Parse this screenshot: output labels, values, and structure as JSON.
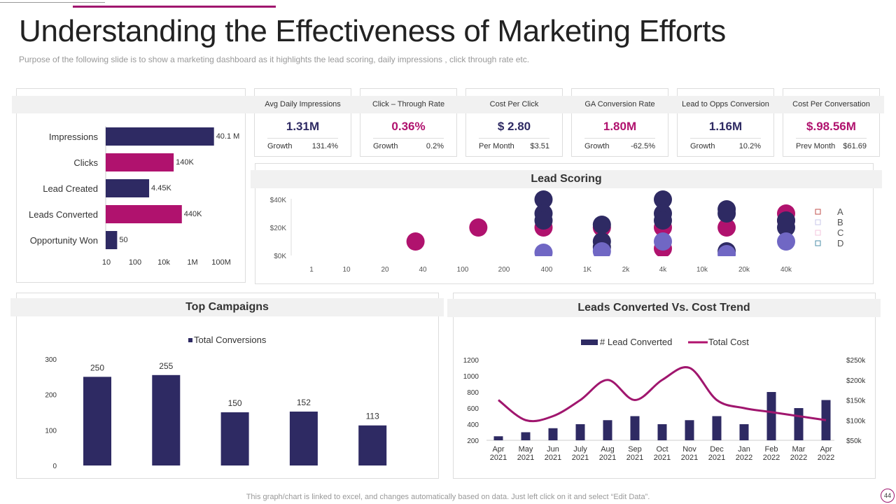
{
  "title": "Understanding the Effectiveness of Marketing Efforts",
  "subtitle": "Purpose of the following slide is to show a marketing dashboard as it highlights the lead scoring, daily impressions , click through rate etc.",
  "colors": {
    "navy": "#2e2a63",
    "magenta": "#b0126e",
    "lavender": "#7067c4",
    "accent": "#a0166e"
  },
  "funnel": {
    "categories": [
      "Impressions",
      "Clicks",
      "Lead Created",
      "Leads Converted",
      "Opportunity Won"
    ],
    "values": [
      40100000,
      140000,
      4450,
      440000,
      50
    ],
    "labels": [
      "40.1 M",
      "140K",
      "4.45K",
      "440K",
      "50"
    ],
    "colors": [
      "navy",
      "magenta",
      "navy",
      "magenta",
      "navy"
    ],
    "ticks": [
      "10",
      "100",
      "10k",
      "1M",
      "100M"
    ],
    "scale": "log"
  },
  "kpis": [
    {
      "title": "Avg Daily Impressions",
      "value": "1.31M",
      "color": "navy",
      "foot_label": "Growth",
      "foot_value": "131.4%"
    },
    {
      "title": "Click – Through Rate",
      "value": "0.36%",
      "color": "magenta",
      "foot_label": "Growth",
      "foot_value": "0.2%"
    },
    {
      "title": "Cost Per Click",
      "value": "$ 2.80",
      "color": "navy",
      "foot_label": "Per Month",
      "foot_value": "$3.51"
    },
    {
      "title": "GA Conversion Rate",
      "value": "1.80M",
      "color": "magenta",
      "foot_label": "Growth",
      "foot_value": "-62.5%"
    },
    {
      "title": "Lead to Opps Conversion",
      "value": "1.16M",
      "color": "navy",
      "foot_label": "Growth",
      "foot_value": "10.2%"
    },
    {
      "title": "Cost Per Conversation",
      "value": "$.98.56M",
      "color": "magenta",
      "foot_label": "Prev Month",
      "foot_value": "$61.69"
    }
  ],
  "chart_data": [
    {
      "type": "scatter",
      "title": "Lead Scoring",
      "x_ticks": [
        "1",
        "10",
        "20",
        "40",
        "100",
        "200",
        "400",
        "1K",
        "2k",
        "4k",
        "10k",
        "20k",
        "40k"
      ],
      "y_ticks": [
        "$0K",
        "$20K",
        "$40K"
      ],
      "ylim": [
        0,
        40000
      ],
      "legend": [
        {
          "name": "A",
          "color": "#c0504d"
        },
        {
          "name": "B",
          "color": "#c9c7ea"
        },
        {
          "name": "C",
          "color": "#f3c6dc"
        },
        {
          "name": "D",
          "color": "#4f8fa8"
        }
      ],
      "legend_position": "right",
      "series": [
        {
          "color": "#b0126e",
          "points": [
            [
              35,
              10000
            ],
            [
              130,
              20000
            ],
            [
              380,
              20000
            ],
            [
              1300,
              20000
            ],
            [
              4000,
              20000
            ],
            [
              4000,
              5000
            ],
            [
              15000,
              20000
            ],
            [
              40000,
              30000
            ],
            [
              40000,
              25000
            ]
          ]
        },
        {
          "color": "#2e2a63",
          "points": [
            [
              380,
              40000
            ],
            [
              380,
              30000
            ],
            [
              380,
              25000
            ],
            [
              1300,
              22000
            ],
            [
              1300,
              10000
            ],
            [
              1300,
              6000
            ],
            [
              4000,
              40000
            ],
            [
              4000,
              30000
            ],
            [
              4000,
              25000
            ],
            [
              15000,
              33000
            ],
            [
              15000,
              30000
            ],
            [
              15000,
              3000
            ],
            [
              40000,
              25000
            ],
            [
              40000,
              20000
            ]
          ]
        },
        {
          "color": "#7067c4",
          "points": [
            [
              380,
              2000
            ],
            [
              1300,
              3000
            ],
            [
              4000,
              10000
            ],
            [
              15000,
              1000
            ],
            [
              40000,
              10000
            ]
          ]
        }
      ]
    },
    {
      "type": "bar",
      "title": "Top Campaigns",
      "legend": [
        "Total Conversions"
      ],
      "values": [
        250,
        255,
        150,
        152,
        113
      ],
      "ylim": [
        0,
        300
      ],
      "y_ticks": [
        0,
        100,
        200,
        300
      ]
    },
    {
      "type": "bar+line",
      "title": "Leads Converted Vs. Cost Trend",
      "categories": [
        "Apr 2021",
        "May 2021",
        "Jun 2021",
        "July 2021",
        "Aug 2021",
        "Sep 2021",
        "Oct 2021",
        "Nov 2021",
        "Dec 2021",
        "Jan 2022",
        "Feb 2022",
        "Mar 2022",
        "Apr 2022"
      ],
      "series": [
        {
          "name": "# Lead Converted",
          "type": "bar",
          "values": [
            250,
            300,
            350,
            400,
            450,
            500,
            400,
            450,
            500,
            400,
            800,
            600,
            700
          ]
        },
        {
          "name": "Total Cost",
          "type": "line",
          "axis": "right",
          "values": [
            150,
            100,
            110,
            150,
            200,
            150,
            200,
            230,
            150,
            130,
            120,
            110,
            100
          ]
        }
      ],
      "ylim": [
        200,
        1200
      ],
      "y_ticks": [
        200,
        400,
        600,
        800,
        1000,
        1200
      ],
      "y2lim": [
        50,
        250
      ],
      "y2_ticks": [
        "$50k",
        "$100k",
        "$150k",
        "$200k",
        "$250k"
      ]
    }
  ],
  "footer": "This graph/chart is linked to excel, and changes automatically based on data. Just left click on it and select “Edit Data”.",
  "page_number": "44"
}
